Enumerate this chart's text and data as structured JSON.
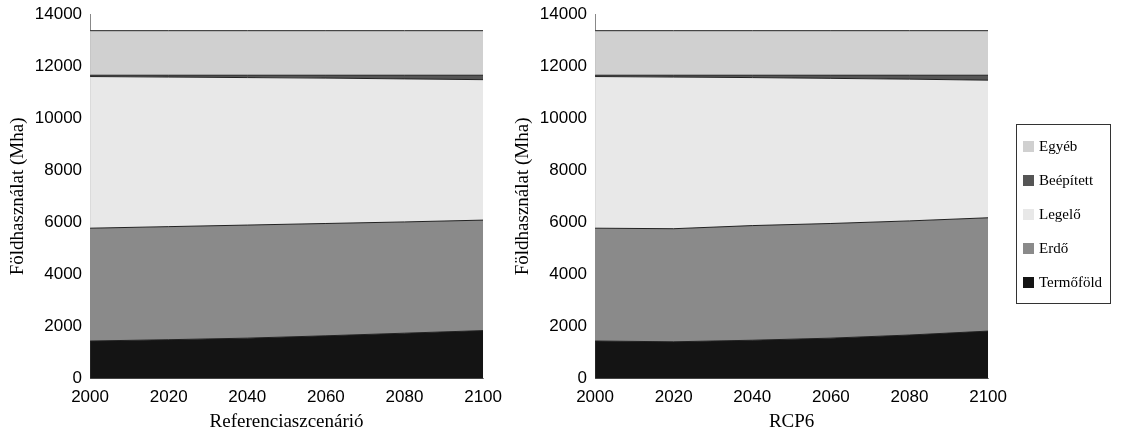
{
  "chart_data": [
    {
      "type": "area",
      "stacked": true,
      "xlabel": "Referenciaszcenárió",
      "ylabel": "Földhasználat (Mha)",
      "x": [
        2000,
        2020,
        2040,
        2060,
        2080,
        2100
      ],
      "xlim": [
        2000,
        2100
      ],
      "xticks": [
        2000,
        2020,
        2040,
        2060,
        2080,
        2100
      ],
      "ylim": [
        0,
        14000
      ],
      "yticks": [
        0,
        2000,
        4000,
        6000,
        8000,
        10000,
        12000,
        14000
      ],
      "marker": "none",
      "series": [
        {
          "color": "#141414",
          "values": [
            1450,
            1500,
            1560,
            1650,
            1750,
            1850
          ]
        },
        {
          "color": "#8a8a8a",
          "values": [
            4330,
            4340,
            4340,
            4310,
            4270,
            4240
          ]
        },
        {
          "color": "#e8e8e8",
          "values": [
            5820,
            5740,
            5660,
            5580,
            5490,
            5390
          ]
        },
        {
          "color": "#555555",
          "values": [
            50,
            70,
            90,
            110,
            140,
            170
          ]
        },
        {
          "color": "#d0d0d0",
          "values": [
            1710,
            1710,
            1710,
            1710,
            1710,
            1710
          ]
        }
      ]
    },
    {
      "type": "area",
      "stacked": true,
      "xlabel": "RCP6",
      "ylabel": "Földhasználat (Mha)",
      "x": [
        2000,
        2020,
        2040,
        2060,
        2080,
        2100
      ],
      "xlim": [
        2000,
        2100
      ],
      "xticks": [
        2000,
        2020,
        2040,
        2060,
        2080,
        2100
      ],
      "ylim": [
        0,
        14000
      ],
      "yticks": [
        0,
        2000,
        4000,
        6000,
        8000,
        10000,
        12000,
        14000
      ],
      "marker": "none",
      "legend": "right",
      "series": [
        {
          "name": "Termőföld",
          "color": "#141414",
          "values": [
            1450,
            1420,
            1480,
            1560,
            1680,
            1830
          ]
        },
        {
          "name": "Erdő",
          "color": "#8a8a8a",
          "values": [
            4330,
            4340,
            4400,
            4400,
            4380,
            4350
          ]
        },
        {
          "name": "Legelő",
          "color": "#e8e8e8",
          "values": [
            5820,
            5820,
            5680,
            5570,
            5440,
            5280
          ]
        },
        {
          "name": "Beépített",
          "color": "#555555",
          "values": [
            50,
            70,
            90,
            120,
            150,
            190
          ]
        },
        {
          "name": "Egyéb",
          "color": "#d0d0d0",
          "values": [
            1710,
            1710,
            1710,
            1710,
            1710,
            1710
          ]
        }
      ]
    }
  ]
}
